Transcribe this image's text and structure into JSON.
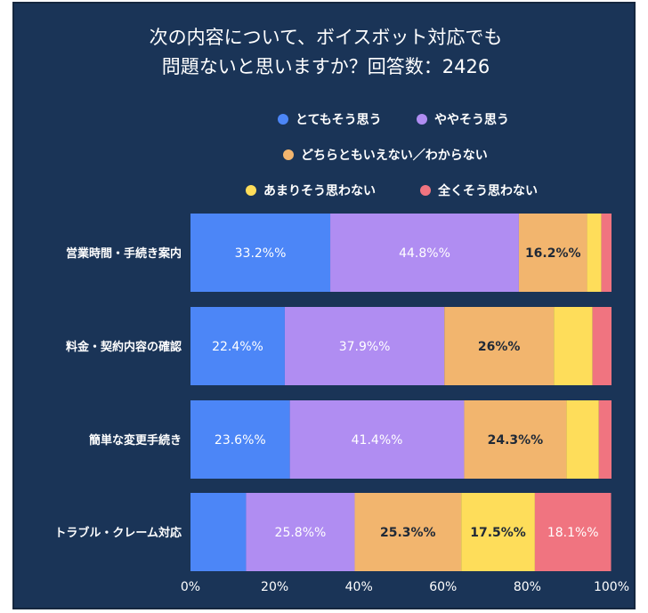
{
  "chart_data": {
    "type": "bar",
    "orientation": "horizontal",
    "stacked": true,
    "title": [
      "次の内容について、ボイスボット対応でも",
      "問題ないと思いますか？回答数：2426"
    ],
    "categories": [
      "営業時間・手続き案内",
      "料金・契約内容の確認",
      "簡単な変更手続き",
      "トラブル・クレーム対応"
    ],
    "series": [
      {
        "name": "とてもそう思う",
        "color": "#4c86f7",
        "values": [
          33.2,
          22.4,
          23.6,
          13.2
        ],
        "labels": [
          "33.2%%",
          "22.4%%",
          "23.6%%",
          ""
        ],
        "label_color": "#ffffff"
      },
      {
        "name": "ややそう思う",
        "color": "#b08df2",
        "values": [
          44.8,
          37.9,
          41.4,
          25.8
        ],
        "labels": [
          "44.8%%",
          "37.9%%",
          "41.4%%",
          "25.8%%"
        ],
        "label_color": "#ffffff"
      },
      {
        "name": "どちらともいえない／わからない",
        "color": "#f2b56e",
        "values": [
          16.2,
          26,
          24.3,
          25.3
        ],
        "labels": [
          "16.2%%",
          "26%%",
          "24.3%%",
          "25.3%%"
        ],
        "label_color": "#1f2937"
      },
      {
        "name": "あまりそう思わない",
        "color": "#fedd5a",
        "values": [
          3.4,
          9.2,
          7.7,
          17.5
        ],
        "labels": [
          "",
          "",
          "",
          "17.5%%"
        ],
        "label_color": "#1f2937"
      },
      {
        "name": "全くそう思わない",
        "color": "#f07480",
        "values": [
          2.4,
          4.5,
          3.0,
          18.1
        ],
        "labels": [
          "",
          "",
          "",
          "18.1%%"
        ],
        "label_color": "#ffffff"
      }
    ],
    "xlim": [
      0,
      100
    ],
    "xticks": [
      "0%",
      "20%",
      "40%",
      "60%",
      "80%",
      "100%"
    ],
    "legend": "top"
  }
}
